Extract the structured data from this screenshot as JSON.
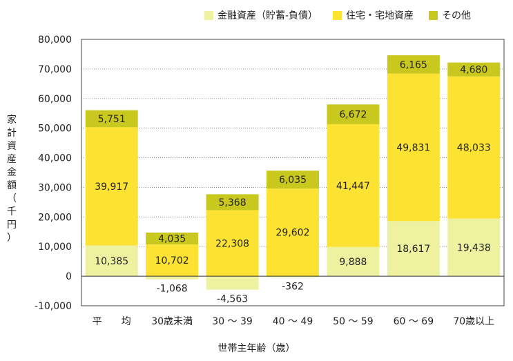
{
  "chart_data": {
    "type": "bar",
    "stacked": true,
    "categories": [
      "平　　均",
      "30歳未満",
      "30 ～ 39",
      "40 ～ 49",
      "50 ～ 59",
      "60 ～ 69",
      "70歳以上"
    ],
    "series": [
      {
        "name": "金融資産（貯蓄-負債）",
        "color": "#eef2a0",
        "values": [
          10385,
          -1068,
          -4563,
          -362,
          9888,
          18617,
          19438
        ],
        "labels": [
          "10,385",
          "-1,068",
          "-4,563",
          "-362",
          "9,888",
          "18,617",
          "19,438"
        ]
      },
      {
        "name": "住宅・宅地資産",
        "color": "#fce232",
        "values": [
          39917,
          10702,
          22308,
          29602,
          41447,
          49831,
          48033
        ],
        "labels": [
          "39,917",
          "10,702",
          "22,308",
          "29,602",
          "41,447",
          "49,831",
          "48,033"
        ]
      },
      {
        "name": "その他",
        "color": "#c9c81e",
        "values": [
          5751,
          4035,
          5368,
          6035,
          6672,
          6165,
          4680
        ],
        "labels": [
          "5,751",
          "4,035",
          "5,368",
          "6,035",
          "6,672",
          "6,165",
          "4,680"
        ]
      }
    ],
    "ylim": [
      -10000,
      80000
    ],
    "yticks": [
      -10000,
      0,
      10000,
      20000,
      30000,
      40000,
      50000,
      60000,
      70000,
      80000
    ],
    "ytick_labels": [
      "-10,000",
      "0",
      "10,000",
      "20,000",
      "30,000",
      "40,000",
      "50,000",
      "60,000",
      "70,000",
      "80,000"
    ],
    "ylabel": "家計資産金額（千円）",
    "xlabel": "世帯主年齢（歳）",
    "grid": "horizontal-dotted",
    "legend_position": "top"
  }
}
